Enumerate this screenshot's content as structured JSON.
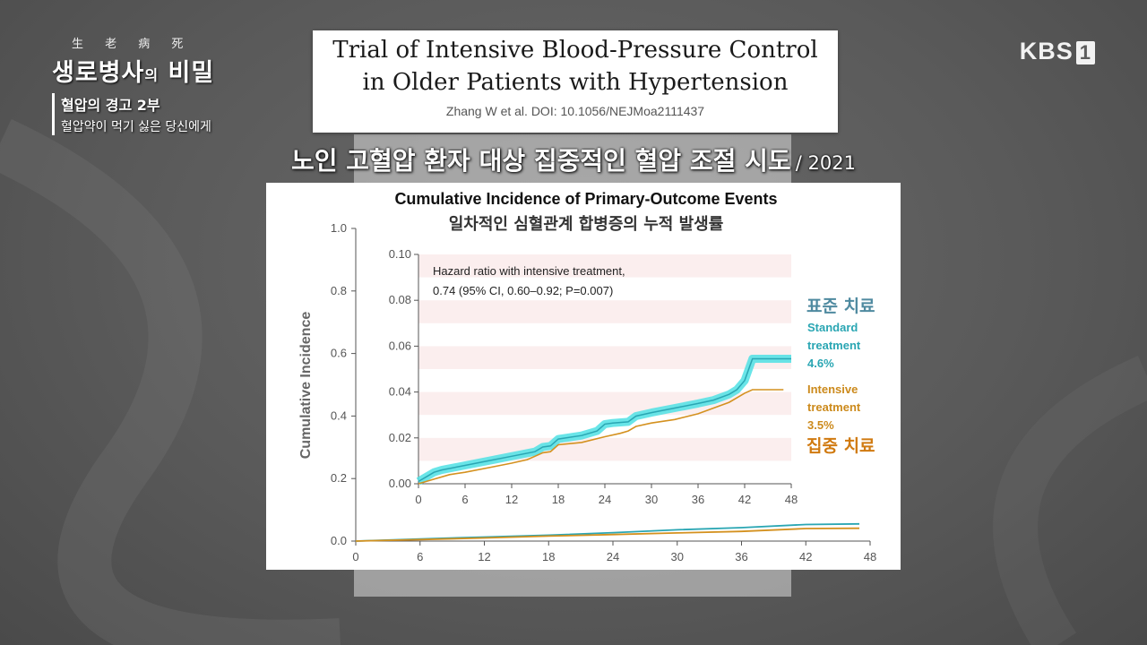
{
  "program": {
    "hanja": "生 老 病 死",
    "title_a": "생로병사",
    "title_small": "의",
    "title_b": "비밀",
    "episode": "혈압의 경고 2부",
    "subtitle": "혈압약이 먹기 싫은 당신에게"
  },
  "broadcaster": {
    "name": "KBS",
    "channel": "1"
  },
  "paper": {
    "title_line1": "Trial of Intensive Blood-Pressure Control",
    "title_line2": "in Older Patients with Hypertension",
    "reference": "Zhang W et al. DOI: 10.1056/NEJMoa2111437"
  },
  "caption": {
    "main": "노인 고혈압 환자 대상 집중적인 혈압 조절 시도",
    "year": "/ 2021"
  },
  "colors": {
    "standard": "#2aa6b3",
    "standard_band": "#4fe0e4",
    "intensive": "#d4911f",
    "accent_std_kr": "#4f8aa0",
    "accent_int_kr": "#d07a10"
  },
  "chart_data": [
    {
      "type": "line",
      "title": "Cumulative Incidence of Primary-Outcome Events",
      "subtitle": "일차적인 심혈관계 합병증의 누적 발생률",
      "ylabel": "Cumulative Incidence",
      "xlabel": "",
      "xlim": [
        0,
        48
      ],
      "ylim": [
        0,
        1.0
      ],
      "x_ticks": [
        "0",
        "6",
        "12",
        "18",
        "24",
        "30",
        "36",
        "42",
        "48"
      ],
      "y_ticks": [
        "0.0",
        "0.2",
        "0.4",
        "0.6",
        "0.8",
        "1.0"
      ],
      "series": [
        {
          "name": "Standard treatment",
          "x": [
            0,
            6,
            12,
            18,
            24,
            30,
            36,
            42,
            47
          ],
          "y": [
            0,
            0.007,
            0.013,
            0.019,
            0.027,
            0.036,
            0.043,
            0.053,
            0.055
          ]
        },
        {
          "name": "Intensive treatment",
          "x": [
            0,
            6,
            12,
            18,
            24,
            30,
            36,
            42,
            47
          ],
          "y": [
            0,
            0.005,
            0.01,
            0.016,
            0.021,
            0.026,
            0.031,
            0.04,
            0.041
          ]
        }
      ]
    },
    {
      "type": "line",
      "title": "inset",
      "xlim": [
        0,
        48
      ],
      "ylim": [
        0,
        0.1
      ],
      "x_ticks": [
        "0",
        "6",
        "12",
        "18",
        "24",
        "30",
        "36",
        "42",
        "48"
      ],
      "y_ticks": [
        "0.00",
        "0.02",
        "0.04",
        "0.06",
        "0.08",
        "0.10"
      ],
      "annotation_line1": "Hazard ratio with intensive treatment,",
      "annotation_line2": "0.74 (95% CI, 0.60–0.92; P=0.007)",
      "series": [
        {
          "name": "Standard treatment",
          "label_lines": [
            "Standard",
            "treatment",
            "4.6%"
          ],
          "label_kr": "표준 치료",
          "x": [
            0,
            1,
            2,
            3,
            6,
            9,
            12,
            15,
            16,
            17,
            18,
            21,
            23,
            24,
            25,
            27,
            28,
            30,
            33,
            36,
            38,
            40,
            41,
            42,
            43,
            48
          ],
          "y": [
            0.001,
            0.003,
            0.005,
            0.006,
            0.008,
            0.01,
            0.012,
            0.014,
            0.016,
            0.0165,
            0.0195,
            0.021,
            0.023,
            0.026,
            0.0265,
            0.027,
            0.0295,
            0.031,
            0.033,
            0.035,
            0.0365,
            0.039,
            0.041,
            0.045,
            0.0545,
            0.0545
          ]
        },
        {
          "name": "Intensive treatment",
          "label_lines": [
            "Intensive",
            "treatment",
            "3.5%"
          ],
          "label_kr": "집중 치료",
          "x": [
            0,
            2,
            4,
            6,
            9,
            12,
            14,
            15,
            16,
            17,
            18,
            21,
            24,
            26,
            27,
            28,
            30,
            33,
            36,
            38,
            40,
            42,
            43,
            47
          ],
          "y": [
            0,
            0.002,
            0.004,
            0.005,
            0.007,
            0.009,
            0.0105,
            0.012,
            0.0135,
            0.014,
            0.017,
            0.018,
            0.0205,
            0.022,
            0.023,
            0.025,
            0.0265,
            0.028,
            0.0305,
            0.033,
            0.0355,
            0.0395,
            0.041,
            0.041
          ]
        }
      ]
    }
  ]
}
